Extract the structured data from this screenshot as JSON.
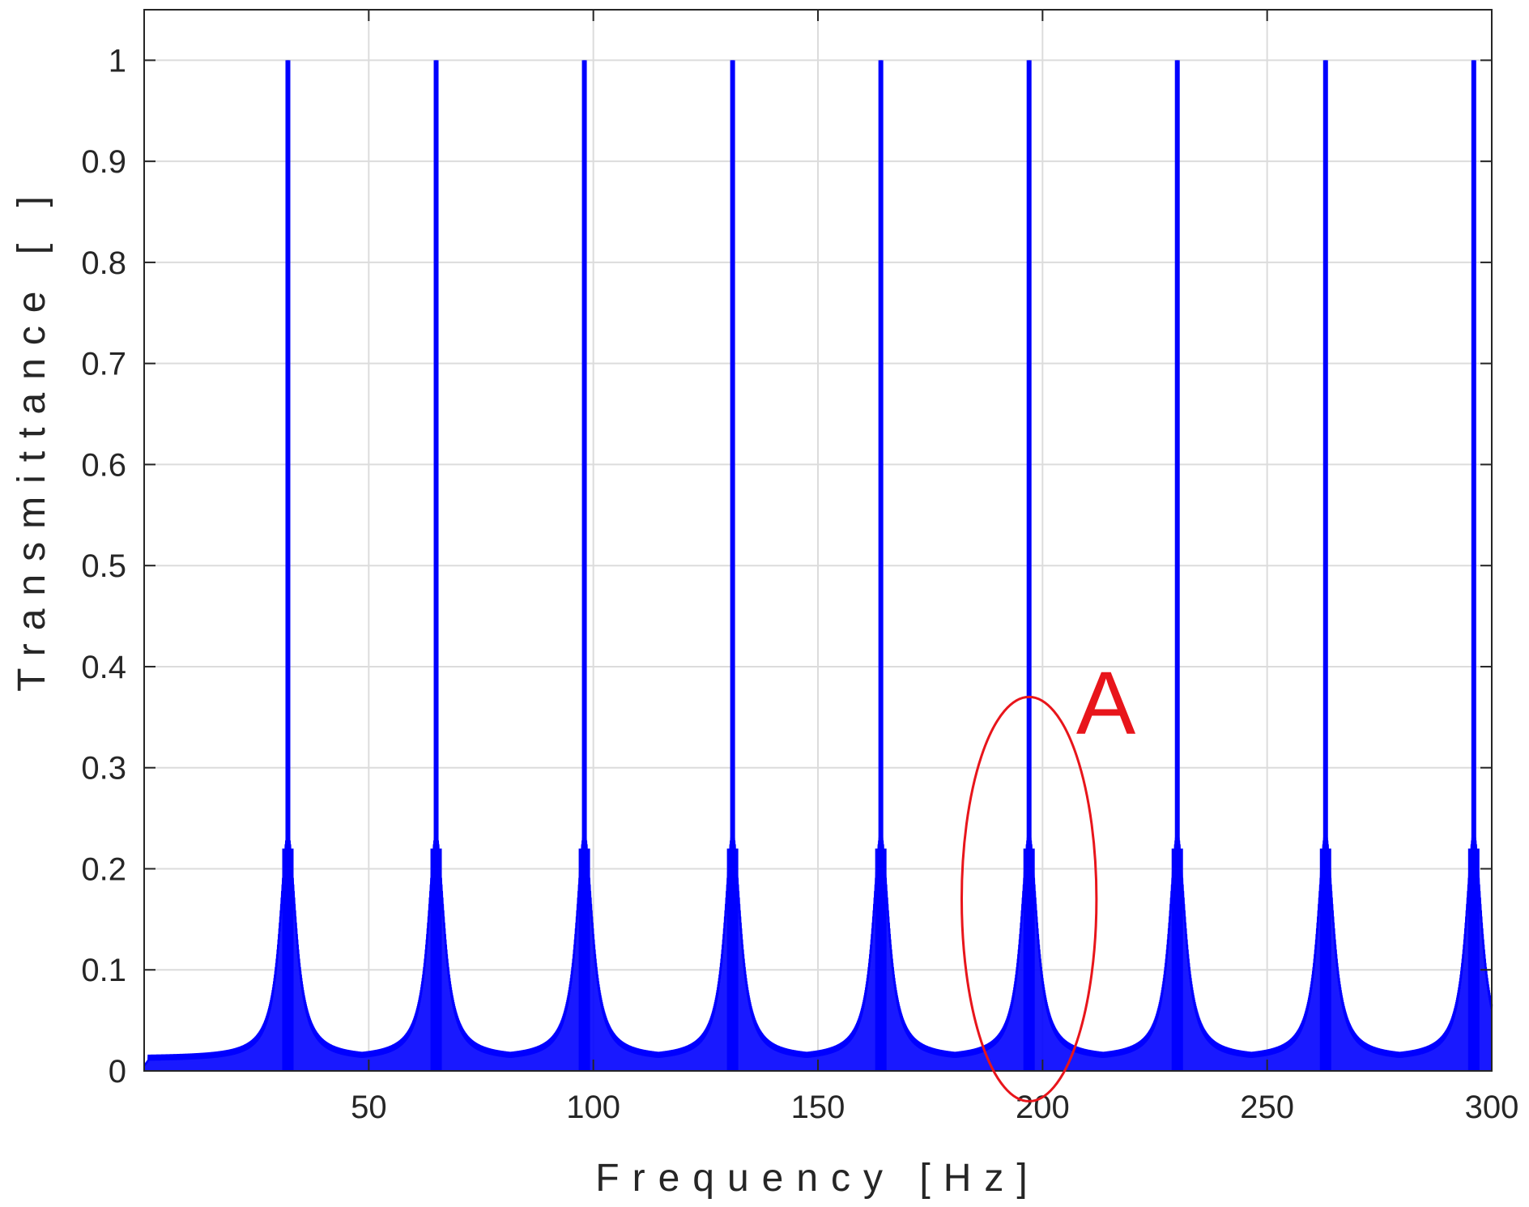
{
  "chart_data": {
    "type": "line",
    "title": "",
    "xlabel": "Frequency [Hz]",
    "ylabel": "Transmittance [ ]",
    "xlim": [
      0,
      300
    ],
    "ylim": [
      0,
      1.05
    ],
    "xticks": [
      50,
      100,
      150,
      200,
      250,
      300
    ],
    "yticks": [
      0,
      0.1,
      0.2,
      0.3,
      0.4,
      0.5,
      0.6,
      0.7,
      0.8,
      0.9,
      1
    ],
    "xtick_labels": [
      "50",
      "100",
      "150",
      "200",
      "250",
      "300"
    ],
    "ytick_labels": [
      "0",
      "0.1",
      "0.2",
      "0.3",
      "0.4",
      "0.5",
      "0.6",
      "0.7",
      "0.8",
      "0.9",
      "1"
    ],
    "grid": true,
    "series": [
      {
        "color": "#0000ff",
        "peak_frequencies": [
          32,
          65,
          98,
          131,
          164,
          197,
          230,
          263,
          296
        ],
        "peak_value": 1.0,
        "shoulder_value": 0.22,
        "baseline_value": 0.015
      }
    ],
    "annotations": [
      {
        "text": "A",
        "color": "#e8151b",
        "shape": "ellipse",
        "center": [
          197,
          0.17
        ],
        "radii": [
          15,
          0.2
        ]
      }
    ]
  }
}
